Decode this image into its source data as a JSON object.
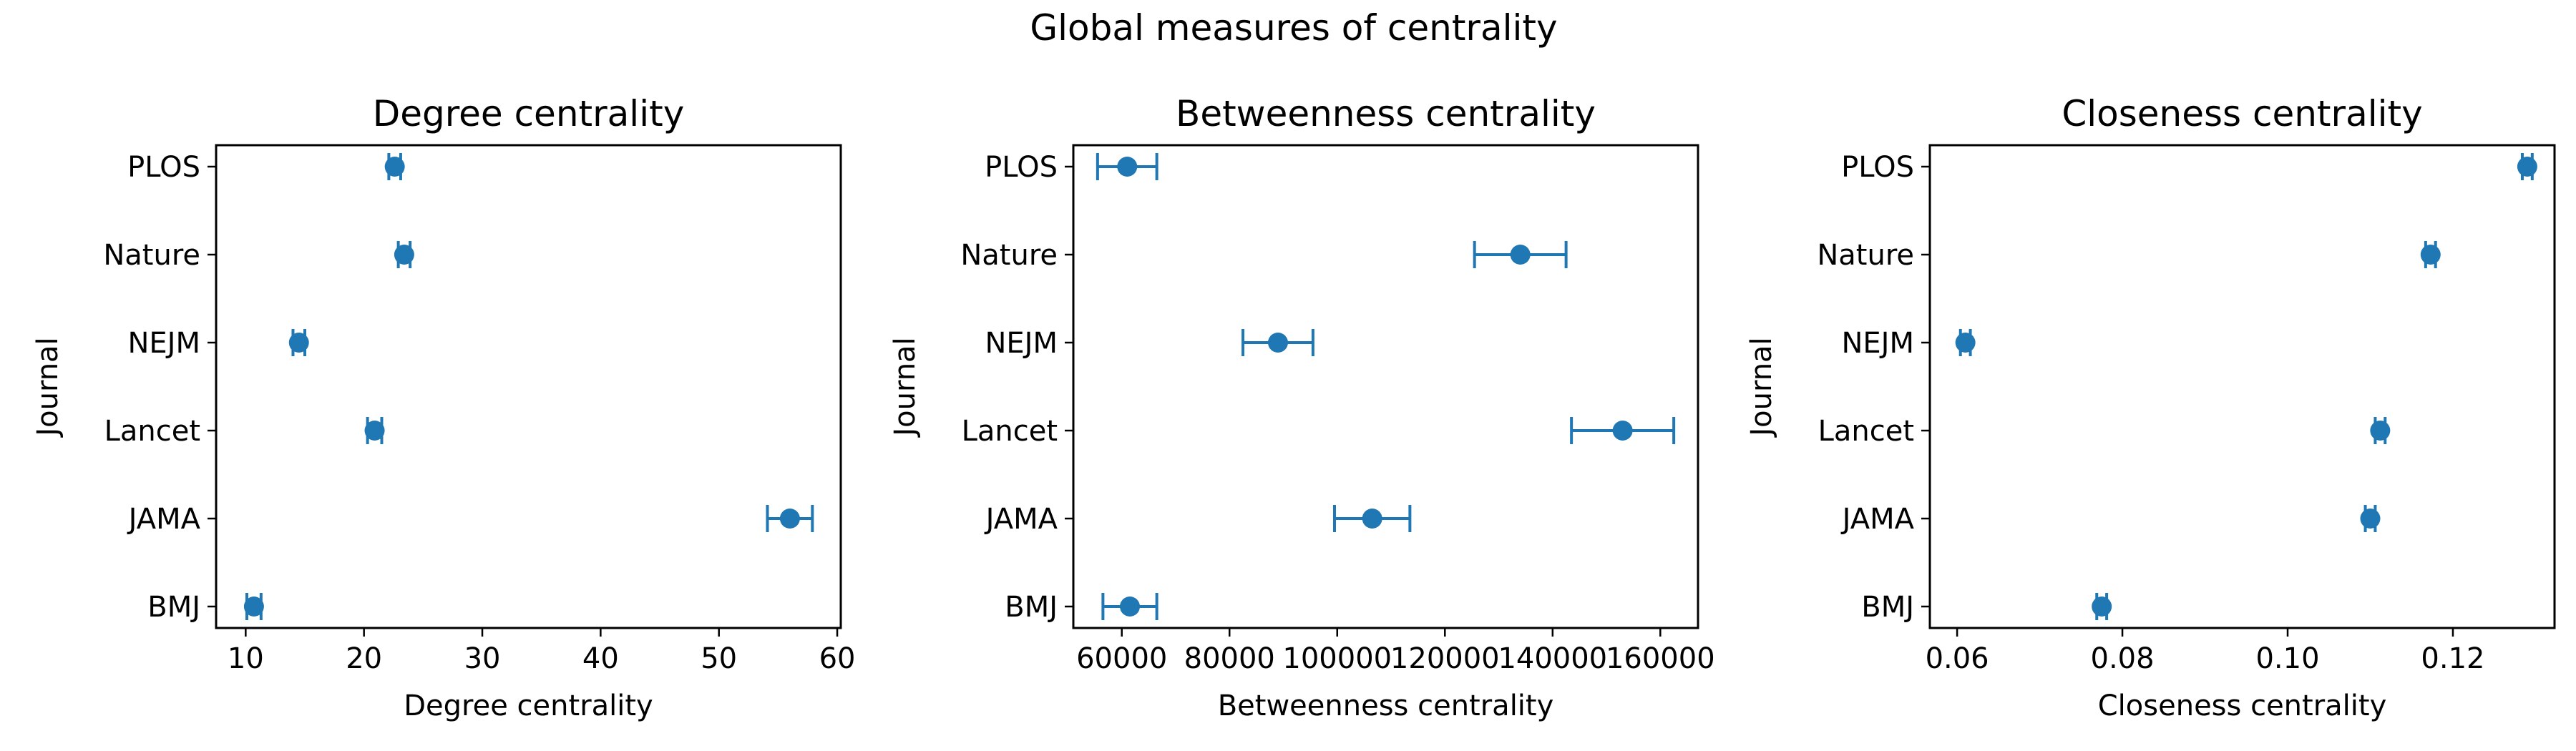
{
  "chart_data": {
    "title": "Global measures of centrality",
    "panels": [
      {
        "type": "scatter",
        "title": "Degree centrality",
        "xlabel": "Degree centrality",
        "ylabel": "Journal",
        "categories": [
          "BMJ",
          "JAMA",
          "Lancet",
          "NEJM",
          "Nature",
          "PLOS"
        ],
        "values": [
          10.7,
          56.0,
          20.9,
          14.5,
          23.4,
          22.6
        ],
        "errors": [
          0.6,
          1.9,
          0.6,
          0.5,
          0.5,
          0.5
        ],
        "xlim": [
          7.5,
          60.3
        ],
        "xticks": [
          10,
          20,
          30,
          40,
          50,
          60
        ],
        "xtick_labels": [
          "10",
          "20",
          "30",
          "40",
          "50",
          "60"
        ]
      },
      {
        "type": "scatter",
        "title": "Betweenness centrality",
        "xlabel": "Betweenness centrality",
        "ylabel": "Journal",
        "categories": [
          "BMJ",
          "JAMA",
          "Lancet",
          "NEJM",
          "Nature",
          "PLOS"
        ],
        "values": [
          61500,
          106500,
          153000,
          89000,
          134000,
          61000
        ],
        "errors": [
          5000,
          7000,
          9500,
          6500,
          8500,
          5500
        ],
        "xlim": [
          51000,
          167000
        ],
        "xticks": [
          60000,
          80000,
          100000,
          120000,
          140000,
          160000
        ],
        "xtick_labels": [
          "60000",
          "80000",
          "100000",
          "120000",
          "140000",
          "160000"
        ]
      },
      {
        "type": "scatter",
        "title": "Closeness centrality",
        "xlabel": "Closeness centrality",
        "ylabel": "Journal",
        "categories": [
          "BMJ",
          "JAMA",
          "Lancet",
          "NEJM",
          "Nature",
          "PLOS"
        ],
        "values": [
          0.0775,
          0.11,
          0.1112,
          0.061,
          0.1173,
          0.129
        ],
        "errors": [
          0.0006,
          0.0006,
          0.0006,
          0.0006,
          0.0006,
          0.0006
        ],
        "xlim": [
          0.0567,
          0.1323
        ],
        "xticks": [
          0.06,
          0.08,
          0.1,
          0.12
        ],
        "xtick_labels": [
          "0.06",
          "0.08",
          "0.10",
          "0.12"
        ]
      }
    ]
  },
  "colors": {
    "marker": "#1f77b4",
    "axis": "#000000"
  }
}
